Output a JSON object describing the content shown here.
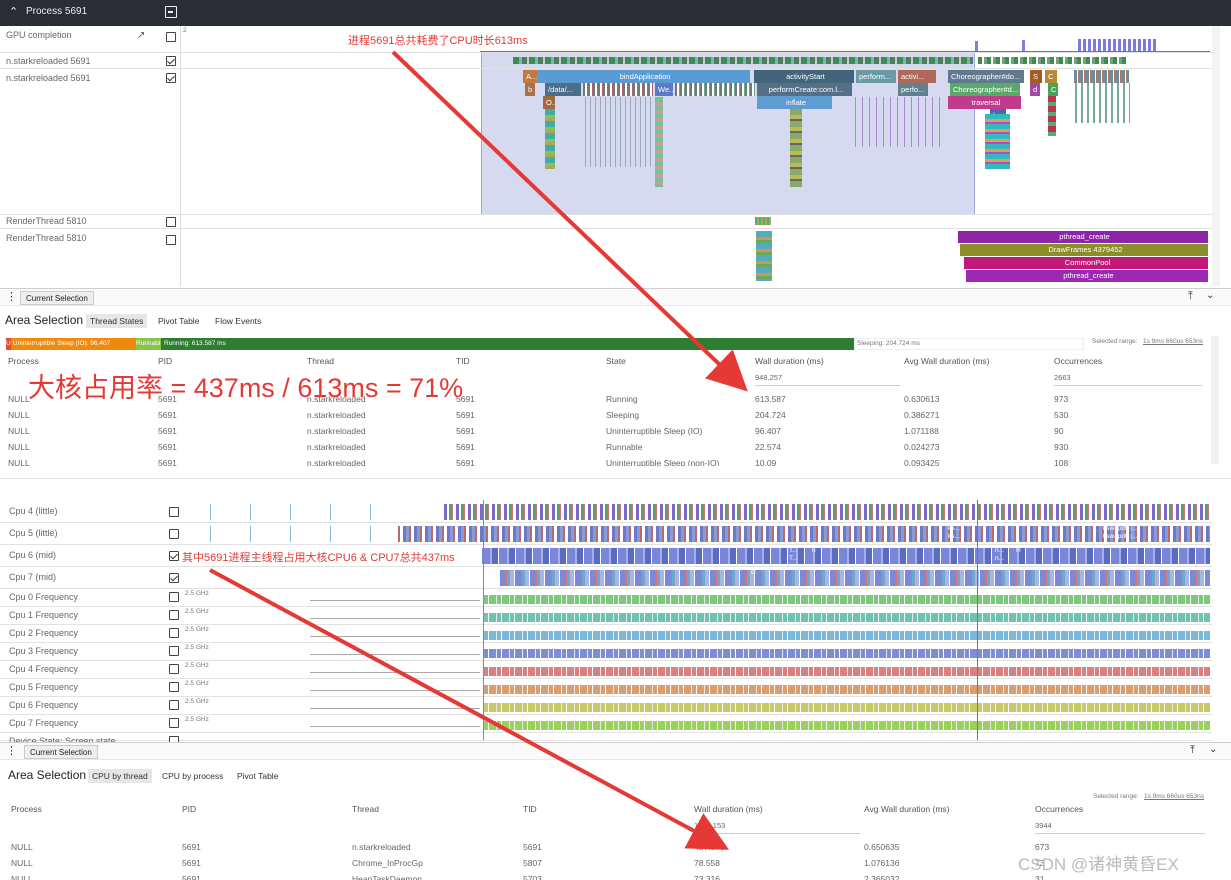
{
  "header": {
    "title": "Process 5691"
  },
  "tracks_top": [
    {
      "label": "GPU completion",
      "checked": false
    },
    {
      "label": "n.starkreloaded 5691",
      "checked": true
    },
    {
      "label": "n.starkreloaded 5691",
      "checked": true
    },
    {
      "label": "RenderThread 5810",
      "checked": false
    },
    {
      "label": "RenderThread 5810",
      "checked": false
    }
  ],
  "gpu_marker": "2",
  "slices_top": {
    "row1": [
      "bindApplication",
      "activityStart",
      "perform...",
      "activi...",
      "Choreographer#do...",
      "Run..."
    ],
    "row2": [
      "/data/...",
      "We...",
      "performCreate:com.l...",
      "perfo...",
      "Choreographer#d...",
      "d",
      "C"
    ],
    "row3": [
      "inflate",
      "traversal"
    ],
    "row0_small": [
      "A...",
      "S",
      "C"
    ],
    "misc": [
      "b",
      "O...",
      "la..."
    ],
    "render": [
      "pthread_create",
      "DrawFrames 4379452",
      "CommonPool",
      "pthread_create"
    ]
  },
  "annotations": {
    "top": "进程5691总共耗费了CPU时长613ms",
    "big": "大核占用率 = 437ms / 613ms = 71%",
    "mid": "其中5691进程主线程占用大核CPU6 & CPU7总共437ms",
    "watermark": "CSDN @诸神黄昏EX"
  },
  "panel1": {
    "tab": "Current Selection",
    "area_title": "Area Selection",
    "subtabs": [
      "Thread States",
      "Pivot Table",
      "Flow Events"
    ],
    "state_bar": [
      "U",
      "Uninterruptible Sleep (IO): 96.407",
      "Runnabl",
      "Running: 613.587 ms",
      "Sleeping: 204.724 ms"
    ],
    "selected_range_label": "Selected range:",
    "selected_range_value": "1s 9ms 660us 653ns",
    "headers": [
      "Process",
      "PID",
      "Thread",
      "TID",
      "State",
      "Wall duration (ms)",
      "Avg Wall duration (ms)",
      "Occurrences"
    ],
    "totals": {
      "wall": "948.257",
      "occ": "2663"
    },
    "rows": [
      [
        "NULL",
        "5691",
        "n.starkreloaded",
        "5691",
        "Running",
        "613.587",
        "0.630613",
        "973"
      ],
      [
        "NULL",
        "5691",
        "n.starkreloaded",
        "5691",
        "Sleeping",
        "204.724",
        "0.386271",
        "530"
      ],
      [
        "NULL",
        "5691",
        "n.starkreloaded",
        "5691",
        "Uninterruptible Sleep (IO)",
        "96.407",
        "1.071188",
        "90"
      ],
      [
        "NULL",
        "5691",
        "n.starkreloaded",
        "5691",
        "Runnable",
        "22.574",
        "0.024273",
        "930"
      ],
      [
        "NULL",
        "5691",
        "n.starkreloaded",
        "5691",
        "Uninterruptible Sleep (non-IO)",
        "10.09",
        "0.093425",
        "108"
      ]
    ]
  },
  "cpu_tracks": [
    {
      "label": "Cpu 4 (little)",
      "checked": false
    },
    {
      "label": "Cpu 5 (little)",
      "checked": false
    },
    {
      "label": "Cpu 6 (mid)",
      "checked": true
    },
    {
      "label": "Cpu 7 (mid)",
      "checked": true
    },
    {
      "label": "Cpu 0 Frequency",
      "checked": false,
      "freq": "2.5 GHz"
    },
    {
      "label": "Cpu 1 Frequency",
      "checked": false,
      "freq": "2.5 GHz"
    },
    {
      "label": "Cpu 2 Frequency",
      "checked": false,
      "freq": "2.5 GHz"
    },
    {
      "label": "Cpu 3 Frequency",
      "checked": false,
      "freq": "2.5 GHz"
    },
    {
      "label": "Cpu 4 Frequency",
      "checked": false,
      "freq": "2.5 GHz"
    },
    {
      "label": "Cpu 5 Frequency",
      "checked": false,
      "freq": "2.5 GHz"
    },
    {
      "label": "Cpu 6 Frequency",
      "checked": false,
      "freq": "2.5 GHz"
    },
    {
      "label": "Cpu 7 Frequency",
      "checked": false,
      "freq": "2.5 GHz"
    },
    {
      "label": "Device State: Screen state",
      "checked": false
    }
  ],
  "cpu_slice_labels": [
    "ks...",
    "ks...",
    "k",
    "kswapd0 [...",
    "kswapd0 [...",
    "T...",
    "T...",
    "n",
    "n...",
    "H",
    "n...",
    "C"
  ],
  "panel2": {
    "tab": "Current Selection",
    "area_title": "Area Selection",
    "subtabs": [
      "CPU by thread",
      "CPU by process",
      "Pivot Table"
    ],
    "selected_range_label": "Selected range:",
    "selected_range_value": "1s 9ms 660us 653ns",
    "headers": [
      "Process",
      "PID",
      "Thread",
      "TID",
      "Wall duration (ms)",
      "Avg Wall duration (ms)",
      "Occurrences"
    ],
    "totals": {
      "wall": "1291.153",
      "occ": "3944"
    },
    "rows": [
      [
        "NULL",
        "5691",
        "n.starkreloaded",
        "5691",
        "437.878",
        "0.650635",
        "673"
      ],
      [
        "NULL",
        "5691",
        "Chrome_InProcGp",
        "5807",
        "78.558",
        "1.076136",
        "73"
      ],
      [
        "NULL",
        "5691",
        "HeapTaskDaemon",
        "5703",
        "73.316",
        "2.365032",
        "31"
      ]
    ]
  },
  "colors": {
    "running": "#2e7d32",
    "sleeping": "#ffffff",
    "uninterruptible": "#ef8a0c",
    "runnable": "#8bc34a",
    "selection": "#c5cae9",
    "annotation": "#e53935",
    "bind": "#5b9bd5",
    "purple": "#8e24aa"
  }
}
